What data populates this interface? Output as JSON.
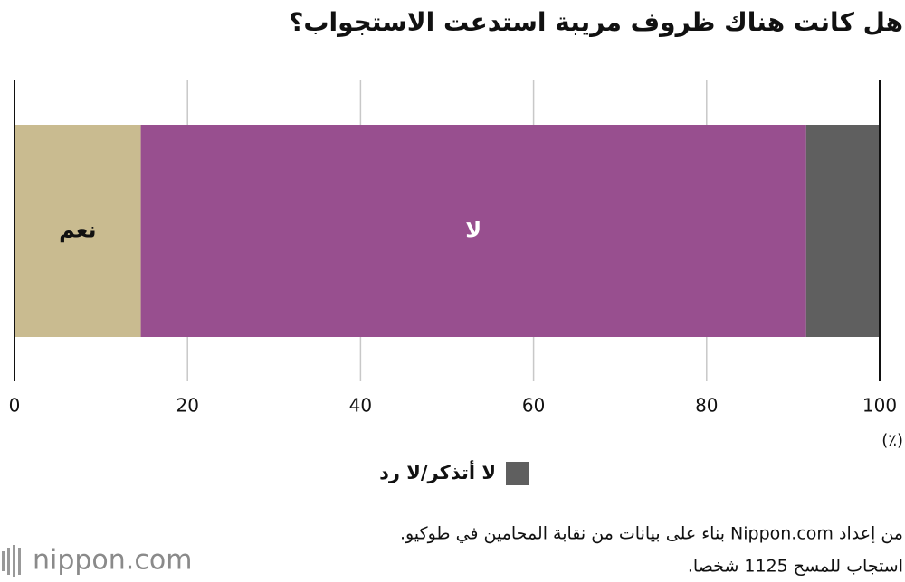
{
  "chart_data": {
    "type": "stacked_bar",
    "title": "هل كانت هناك ظروف مريبة استدعت الاستجواب؟",
    "categories": [
      null
    ],
    "series": [
      {
        "name": "نعم",
        "color": "#c9bb90",
        "label_color": "#111111",
        "label_position": "inside",
        "values": [
          14.6
        ]
      },
      {
        "name": "لا",
        "color": "#984f8f",
        "label_color": "#ffffff",
        "label_position": "inside",
        "values": [
          76.9
        ]
      },
      {
        "name": "لا أتذكر/لا رد",
        "color": "#5f5f5f",
        "label_position": "legend",
        "values": [
          8.5
        ]
      }
    ],
    "xlim": [
      0,
      100
    ],
    "xticks": [
      0,
      20,
      40,
      60,
      80,
      100
    ],
    "x_unit": "(٪)",
    "grid": true
  },
  "notes": [
    "من إعداد Nippon.com بناء على بيانات من نقابة المحامين في طوكيو.",
    "استجاب للمسح 1125 شخصا."
  ],
  "logo": "nippon.com"
}
